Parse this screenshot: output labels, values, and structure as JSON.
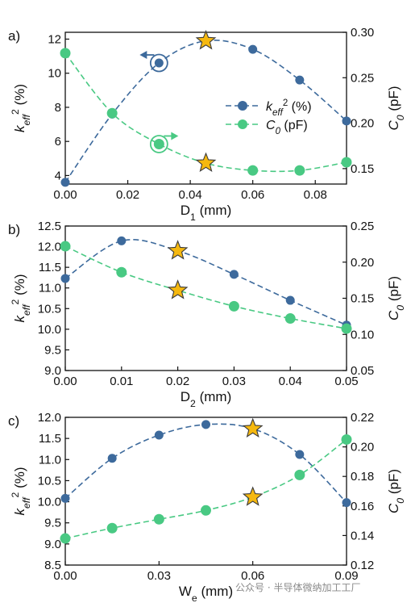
{
  "watermark": "公众号 · 半导体微纳加工工厂",
  "chart_data": [
    {
      "type": "line",
      "panel_label": "a)",
      "xlabel": "D",
      "xlabel_sub": "1",
      "xlabel_unit": " (mm)",
      "ylabel_left": "k",
      "ylabel_left_sub": "eff",
      "ylabel_left_sup": "2",
      "ylabel_left_unit": " (%)",
      "ylabel_right": "C",
      "ylabel_right_sub": "0",
      "ylabel_right_unit": " (pF)",
      "xlim": [
        0,
        0.09
      ],
      "ylim_left": [
        3.5,
        12.4
      ],
      "ylim_right": [
        0.133,
        0.3
      ],
      "xticks": [
        "0.00",
        "0.02",
        "0.04",
        "0.06",
        "0.08"
      ],
      "xtick_values": [
        0,
        0.02,
        0.04,
        0.06,
        0.08
      ],
      "yticks_left": [
        "4",
        "6",
        "8",
        "10",
        "12"
      ],
      "ytick_values_left": [
        4,
        6,
        8,
        10,
        12
      ],
      "yticks_right": [
        "0.15",
        "0.20",
        "0.25",
        "0.30"
      ],
      "ytick_values_right": [
        0.15,
        0.2,
        0.25,
        0.3
      ],
      "legend_position": "right",
      "series": [
        {
          "name": "k",
          "name_sub": "eff",
          "name_sup": "2",
          "name_unit": " (%)",
          "axis": "left",
          "color": "#3d6a9c",
          "x": [
            0,
            0.015,
            0.03,
            0.045,
            0.06,
            0.075,
            0.09
          ],
          "y": [
            3.6,
            7.6,
            10.6,
            11.9,
            11.4,
            9.6,
            7.2
          ]
        },
        {
          "name": "C",
          "name_sub": "0",
          "name_unit": " (pF)",
          "axis": "right",
          "color": "#49c983",
          "x": [
            0,
            0.015,
            0.03,
            0.045,
            0.06,
            0.075,
            0.09
          ],
          "y": [
            0.277,
            0.211,
            0.177,
            0.156,
            0.148,
            0.148,
            0.157
          ]
        }
      ],
      "stars": [
        {
          "series": 0,
          "x": 0.045
        },
        {
          "series": 1,
          "x": 0.045
        }
      ],
      "highlighted_points": [
        {
          "series": 0,
          "x": 0.03,
          "arrow": "left"
        },
        {
          "series": 1,
          "x": 0.03,
          "arrow": "right"
        }
      ]
    },
    {
      "type": "line",
      "panel_label": "b)",
      "xlabel": "D",
      "xlabel_sub": "2",
      "xlabel_unit": " (mm)",
      "ylabel_left": "k",
      "ylabel_left_sub": "eff",
      "ylabel_left_sup": "2",
      "ylabel_left_unit": " (%)",
      "ylabel_right": "C",
      "ylabel_right_sub": "0",
      "ylabel_right_unit": " (pF)",
      "xlim": [
        0,
        0.05
      ],
      "ylim_left": [
        9.0,
        12.5
      ],
      "ylim_right": [
        0.05,
        0.25
      ],
      "xticks": [
        "0.00",
        "0.01",
        "0.02",
        "0.03",
        "0.04",
        "0.05"
      ],
      "xtick_values": [
        0,
        0.01,
        0.02,
        0.03,
        0.04,
        0.05
      ],
      "yticks_left": [
        "9.0",
        "9.5",
        "10.0",
        "10.5",
        "11.0",
        "11.5",
        "12.0",
        "12.5"
      ],
      "ytick_values_left": [
        9.0,
        9.5,
        10.0,
        10.5,
        11.0,
        11.5,
        12.0,
        12.5
      ],
      "yticks_right": [
        "0.05",
        "0.10",
        "0.15",
        "0.20",
        "0.25"
      ],
      "ytick_values_right": [
        0.05,
        0.1,
        0.15,
        0.2,
        0.25
      ],
      "series": [
        {
          "name": "",
          "axis": "left",
          "color": "#3d6a9c",
          "x": [
            0,
            0.01,
            0.02,
            0.03,
            0.04,
            0.05
          ],
          "y": [
            11.23,
            12.14,
            11.9,
            11.33,
            10.7,
            10.1
          ]
        },
        {
          "name": "",
          "axis": "right",
          "color": "#49c983",
          "x": [
            0,
            0.01,
            0.02,
            0.03,
            0.04,
            0.05
          ],
          "y": [
            0.222,
            0.186,
            0.161,
            0.139,
            0.122,
            0.108
          ]
        }
      ],
      "stars": [
        {
          "series": 0,
          "x": 0.02
        },
        {
          "series": 1,
          "x": 0.02
        }
      ]
    },
    {
      "type": "line",
      "panel_label": "c)",
      "xlabel": "W",
      "xlabel_sub": "e",
      "xlabel_unit": " (mm)",
      "ylabel_left": "k",
      "ylabel_left_sub": "eff",
      "ylabel_left_sup": "2",
      "ylabel_left_unit": " (%)",
      "ylabel_right": "C",
      "ylabel_right_sub": "0",
      "ylabel_right_unit": " (pF)",
      "xlim": [
        0,
        0.09
      ],
      "ylim_left": [
        8.5,
        12.0
      ],
      "ylim_right": [
        0.12,
        0.22
      ],
      "xticks": [
        "0.00",
        "0.03",
        "0.06",
        "0.09"
      ],
      "xtick_values": [
        0,
        0.03,
        0.06,
        0.09
      ],
      "yticks_left": [
        "8.5",
        "9.0",
        "9.5",
        "10.0",
        "10.5",
        "11.0",
        "11.5",
        "12.0"
      ],
      "ytick_values_left": [
        8.5,
        9.0,
        9.5,
        10.0,
        10.5,
        11.0,
        11.5,
        12.0
      ],
      "yticks_right": [
        "0.12",
        "0.14",
        "0.16",
        "0.18",
        "0.20",
        "0.22"
      ],
      "ytick_values_right": [
        0.12,
        0.14,
        0.16,
        0.18,
        0.2,
        0.22
      ],
      "series": [
        {
          "name": "",
          "axis": "left",
          "color": "#3d6a9c",
          "x": [
            0,
            0.015,
            0.03,
            0.045,
            0.06,
            0.075,
            0.09
          ],
          "y": [
            10.08,
            11.03,
            11.58,
            11.83,
            11.73,
            11.12,
            9.98
          ]
        },
        {
          "name": "",
          "axis": "right",
          "color": "#49c983",
          "x": [
            0,
            0.015,
            0.03,
            0.045,
            0.06,
            0.075,
            0.09
          ],
          "y": [
            0.138,
            0.145,
            0.151,
            0.157,
            0.166,
            0.181,
            0.205
          ]
        }
      ],
      "stars": [
        {
          "series": 0,
          "x": 0.06
        },
        {
          "series": 1,
          "x": 0.06
        }
      ]
    }
  ]
}
